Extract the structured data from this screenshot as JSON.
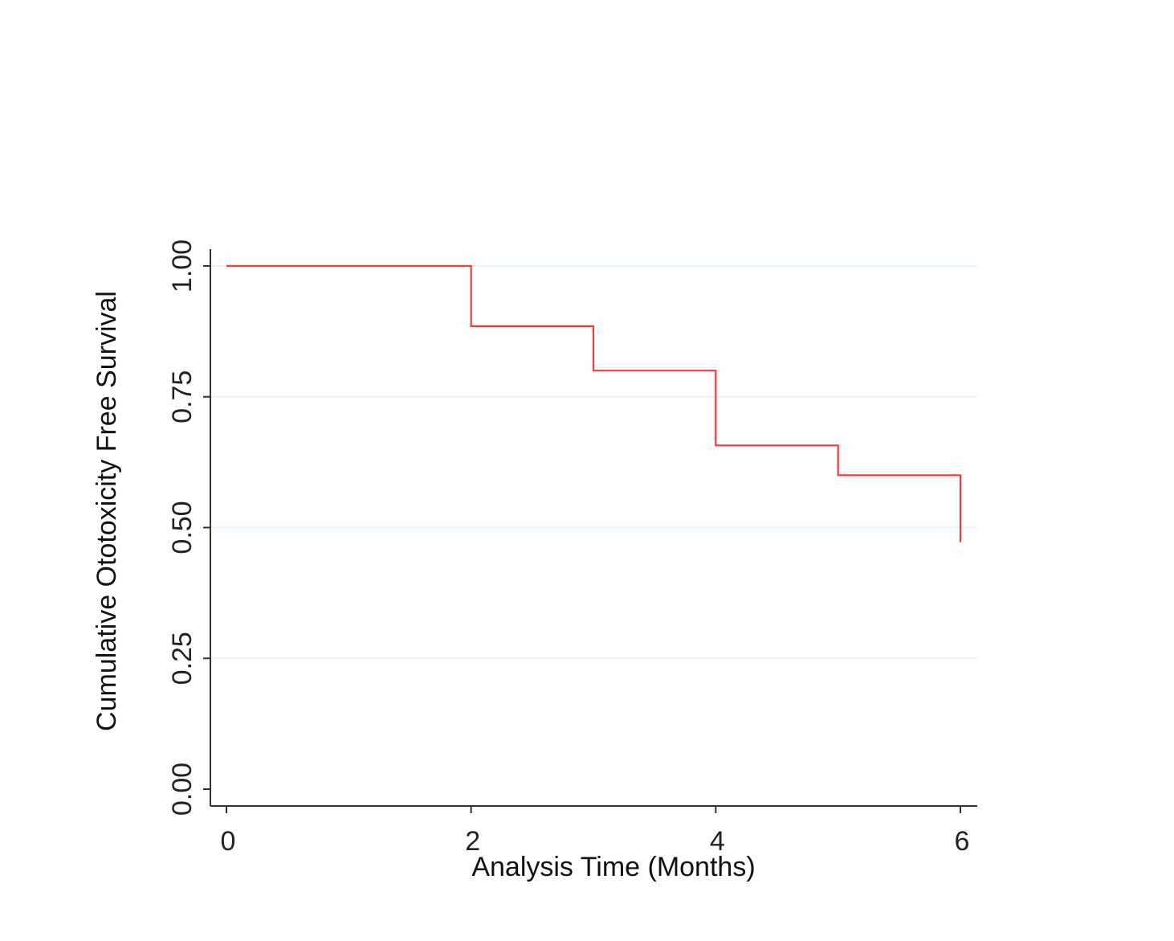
{
  "chart_data": {
    "type": "line",
    "step": true,
    "xlabel": "Analysis Time (Months)",
    "ylabel": "Cumulative Ototoxicity Free Survival",
    "xlim": [
      0,
      6
    ],
    "ylim": [
      0,
      1
    ],
    "x_ticks": [
      "0",
      "2",
      "4",
      "6"
    ],
    "y_ticks": [
      "0.00",
      "0.25",
      "0.50",
      "0.75",
      "1.00"
    ],
    "grid": true,
    "series": [
      {
        "color": "#e8413c",
        "x": [
          0,
          2,
          3,
          4,
          5,
          6
        ],
        "y": [
          1.0,
          0.885,
          0.8,
          0.657,
          0.6,
          0.472
        ]
      }
    ]
  }
}
